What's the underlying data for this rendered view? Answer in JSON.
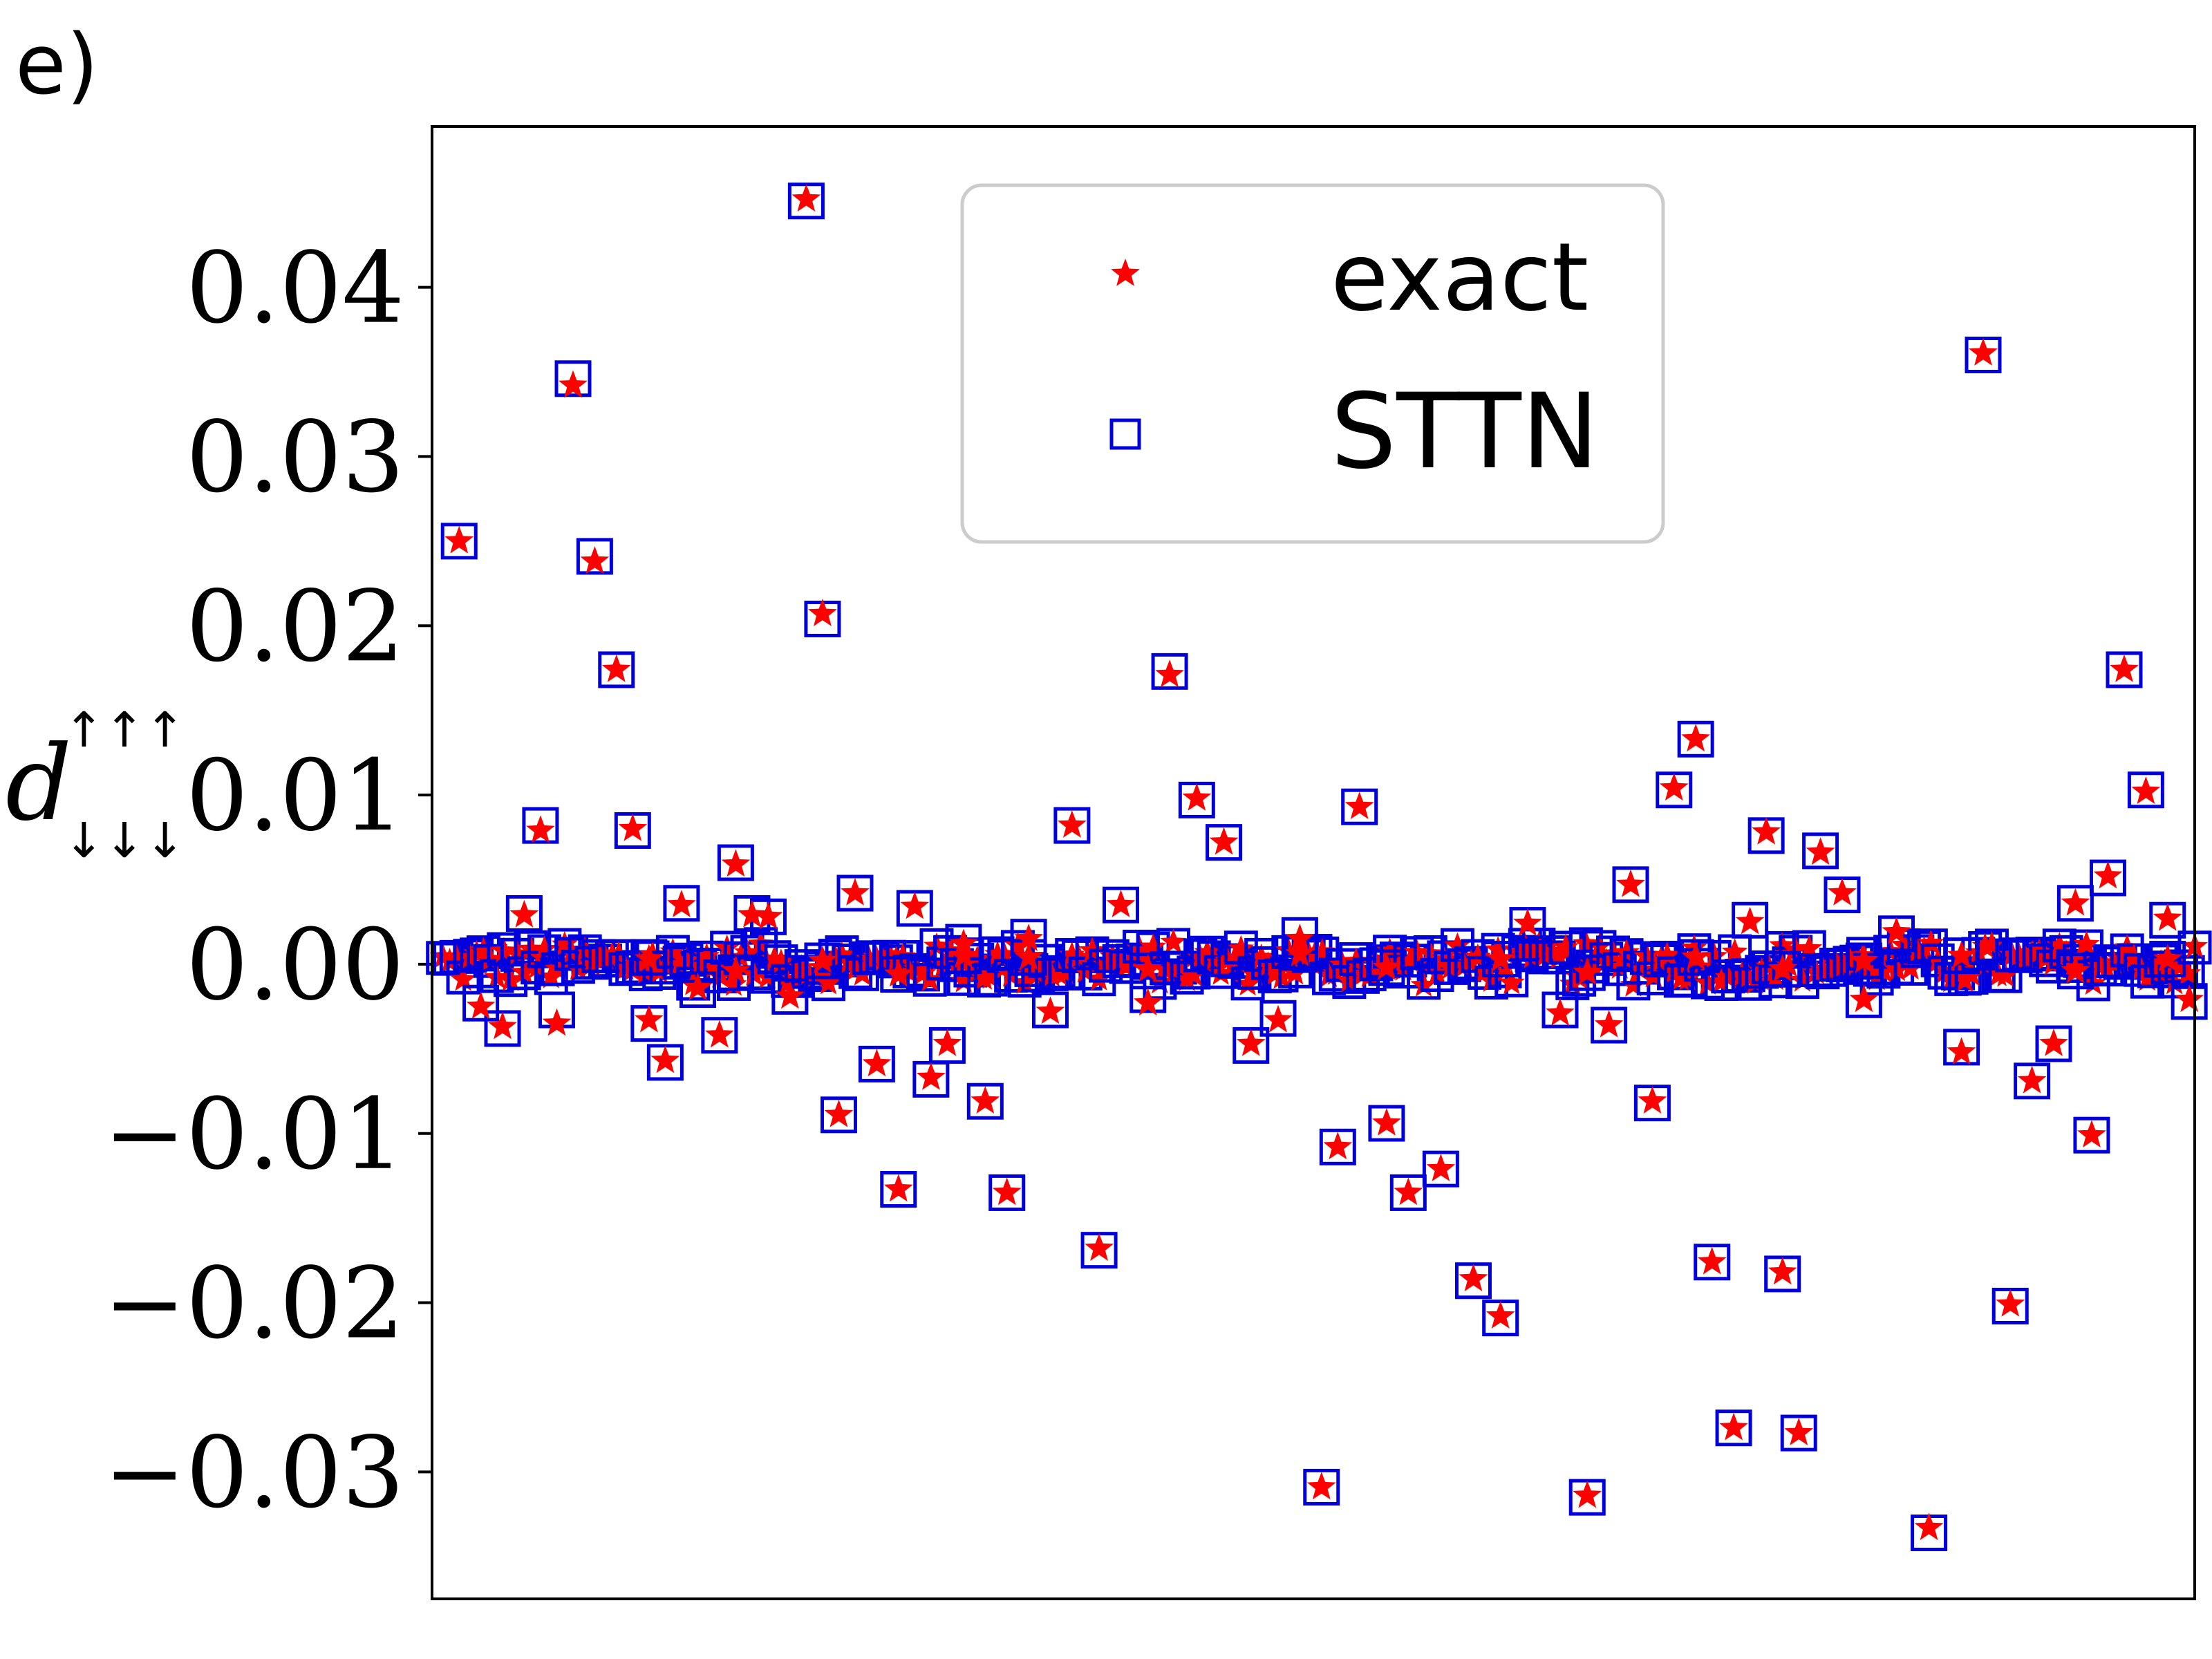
{
  "panel_label": "e)",
  "colors": {
    "exact": "#ff0000",
    "sttn": "#0000dd",
    "axes": "#000000",
    "legend_border": "#cccccc"
  },
  "chart_data": {
    "type": "scatter",
    "title": "",
    "xlabel": "",
    "ylabel": {
      "symbol": "d",
      "superscript": "↑↑↑",
      "subscript": "↓↓↓"
    },
    "ylim": [
      -0.0375,
      0.0495
    ],
    "xlim": [
      0,
      325
    ],
    "yticks": [
      -0.03,
      -0.02,
      -0.01,
      0.0,
      0.01,
      0.02,
      0.03,
      0.04
    ],
    "ytick_labels": [
      "−0.03",
      "−0.02",
      "−0.01",
      "0.00",
      "0.01",
      "0.02",
      "0.03",
      "0.04"
    ],
    "xticks_visible": false,
    "grid": false,
    "legend_position": "top-center",
    "legend": [
      {
        "label": "exact",
        "marker": "star",
        "color": "#ff0000"
      },
      {
        "label": "STTN",
        "marker": "open-square",
        "color": "#0000dd"
      }
    ],
    "series": [
      {
        "name": "exact",
        "marker": "star",
        "x": [
          5,
          9,
          13,
          17,
          20,
          23,
          26,
          30,
          34,
          37,
          40,
          43,
          46,
          49,
          53,
          56,
          59,
          62,
          66,
          69,
          72,
          75,
          78,
          82,
          86,
          89,
          92,
          95,
          98,
          102,
          106,
          110,
          114,
          118,
          123,
          127,
          132,
          136,
          141,
          146,
          151,
          156,
          160,
          164,
          167,
          171,
          176,
          180,
          186,
          192,
          197,
          202,
          208,
          213,
          217,
          221,
          225,
          229,
          233,
          236,
          240,
          243,
          246,
          249,
          252,
          256,
          260,
          264,
          270,
          276,
          282,
          286,
          291,
          295,
          299,
          303,
          306,
          309,
          312,
          316,
          320,
          324,
          40,
          56,
          72,
          86,
          98,
          110,
          132,
          160,
          176,
          197,
          213,
          233,
          249,
          264,
          282,
          303,
          320
        ],
        "y": [
          0.025,
          -0.0025,
          -0.0037,
          0.0029,
          0.0079,
          -0.0035,
          0.0342,
          0.0238,
          0.0174,
          0.008,
          -0.0033,
          -0.0057,
          0.0035,
          -0.0014,
          -0.0042,
          0.0059,
          0.0029,
          0.0028,
          -0.0019,
          0.0452,
          0.0207,
          -0.0089,
          0.0042,
          -0.0059,
          -0.0133,
          0.0034,
          -0.0067,
          -0.0047,
          0.0012,
          -0.0081,
          -0.0135,
          0.0015,
          -0.0028,
          0.0082,
          -0.0168,
          0.0035,
          -0.0023,
          0.0171,
          0.0098,
          0.0072,
          -0.0047,
          -0.0033,
          0.0015,
          -0.0309,
          -0.0108,
          0.0093,
          -0.0094,
          -0.0135,
          -0.0121,
          -0.0186,
          -0.0208,
          0.0024,
          -0.0029,
          -0.0314,
          -0.0036,
          0.0047,
          -0.0081,
          0.0104,
          0.0133,
          -0.0176,
          -0.0274,
          0.0025,
          0.0078,
          -0.0182,
          -0.0277,
          0.0066,
          0.0042,
          -0.0021,
          0.0019,
          -0.0333,
          -0.0052,
          0.0361,
          -0.0201,
          -0.0069,
          -0.0047,
          0.0036,
          -0.0101,
          0.0052,
          0.0174,
          0.0102,
          0.0027,
          -0.0021,
          0.0003,
          -0.0004,
          0.0002,
          -0.0006,
          0.0005,
          0.0004,
          -0.0003,
          0.0006,
          -0.0002,
          0.0003,
          -0.0005,
          0.0004,
          -0.0003,
          0.0002,
          0.0005,
          -0.0004,
          0.0003
        ]
      },
      {
        "name": "STTN",
        "marker": "open-square",
        "x": [
          5,
          9,
          13,
          17,
          20,
          23,
          26,
          30,
          34,
          37,
          40,
          43,
          46,
          49,
          53,
          56,
          59,
          62,
          66,
          69,
          72,
          75,
          78,
          82,
          86,
          89,
          92,
          95,
          98,
          102,
          106,
          110,
          114,
          118,
          123,
          127,
          132,
          136,
          141,
          146,
          151,
          156,
          160,
          164,
          167,
          171,
          176,
          180,
          186,
          192,
          197,
          202,
          208,
          213,
          217,
          221,
          225,
          229,
          233,
          236,
          240,
          243,
          246,
          249,
          252,
          256,
          260,
          264,
          270,
          276,
          282,
          286,
          291,
          295,
          299,
          303,
          306,
          309,
          312,
          316,
          320,
          324,
          40,
          56,
          72,
          86,
          98,
          110,
          132,
          160,
          176,
          197,
          213,
          233,
          249,
          264,
          282,
          303,
          320
        ],
        "y": [
          0.025,
          -0.0023,
          -0.0038,
          0.003,
          0.0082,
          -0.0027,
          0.0346,
          0.0241,
          0.0174,
          0.0079,
          -0.0035,
          -0.0058,
          0.0036,
          -0.0015,
          -0.0042,
          0.006,
          0.003,
          0.0028,
          -0.0019,
          0.0451,
          0.0204,
          -0.0089,
          0.0042,
          -0.0059,
          -0.0133,
          0.0033,
          -0.0068,
          -0.0048,
          0.0013,
          -0.0081,
          -0.0135,
          0.0016,
          -0.0027,
          0.0082,
          -0.0169,
          0.0035,
          -0.0018,
          0.0173,
          0.0097,
          0.0072,
          -0.0048,
          -0.0032,
          0.0017,
          -0.0309,
          -0.0108,
          0.0093,
          -0.0094,
          -0.0135,
          -0.0121,
          -0.0187,
          -0.0209,
          0.0023,
          -0.0027,
          -0.0315,
          -0.0036,
          0.0047,
          -0.0082,
          0.0103,
          0.0133,
          -0.0176,
          -0.0274,
          0.0026,
          0.0076,
          -0.0183,
          -0.0277,
          0.0067,
          0.0041,
          -0.0021,
          0.0018,
          -0.0336,
          -0.0049,
          0.036,
          -0.0202,
          -0.0069,
          -0.0047,
          0.0036,
          -0.0101,
          0.0051,
          0.0174,
          0.0103,
          0.0026,
          -0.0022,
          0.0004,
          -0.0005,
          0.0002,
          -0.0006,
          0.0005,
          0.0004,
          -0.0004,
          0.0007,
          -0.0002,
          0.0003,
          -0.0005,
          0.0004,
          -0.0003,
          0.0002,
          0.0005,
          -0.0004,
          0.0003
        ]
      }
    ],
    "baseline_cluster": {
      "description_free": true,
      "x_start": 2,
      "x_end": 325,
      "count": 260,
      "spread": 0.0012
    }
  }
}
